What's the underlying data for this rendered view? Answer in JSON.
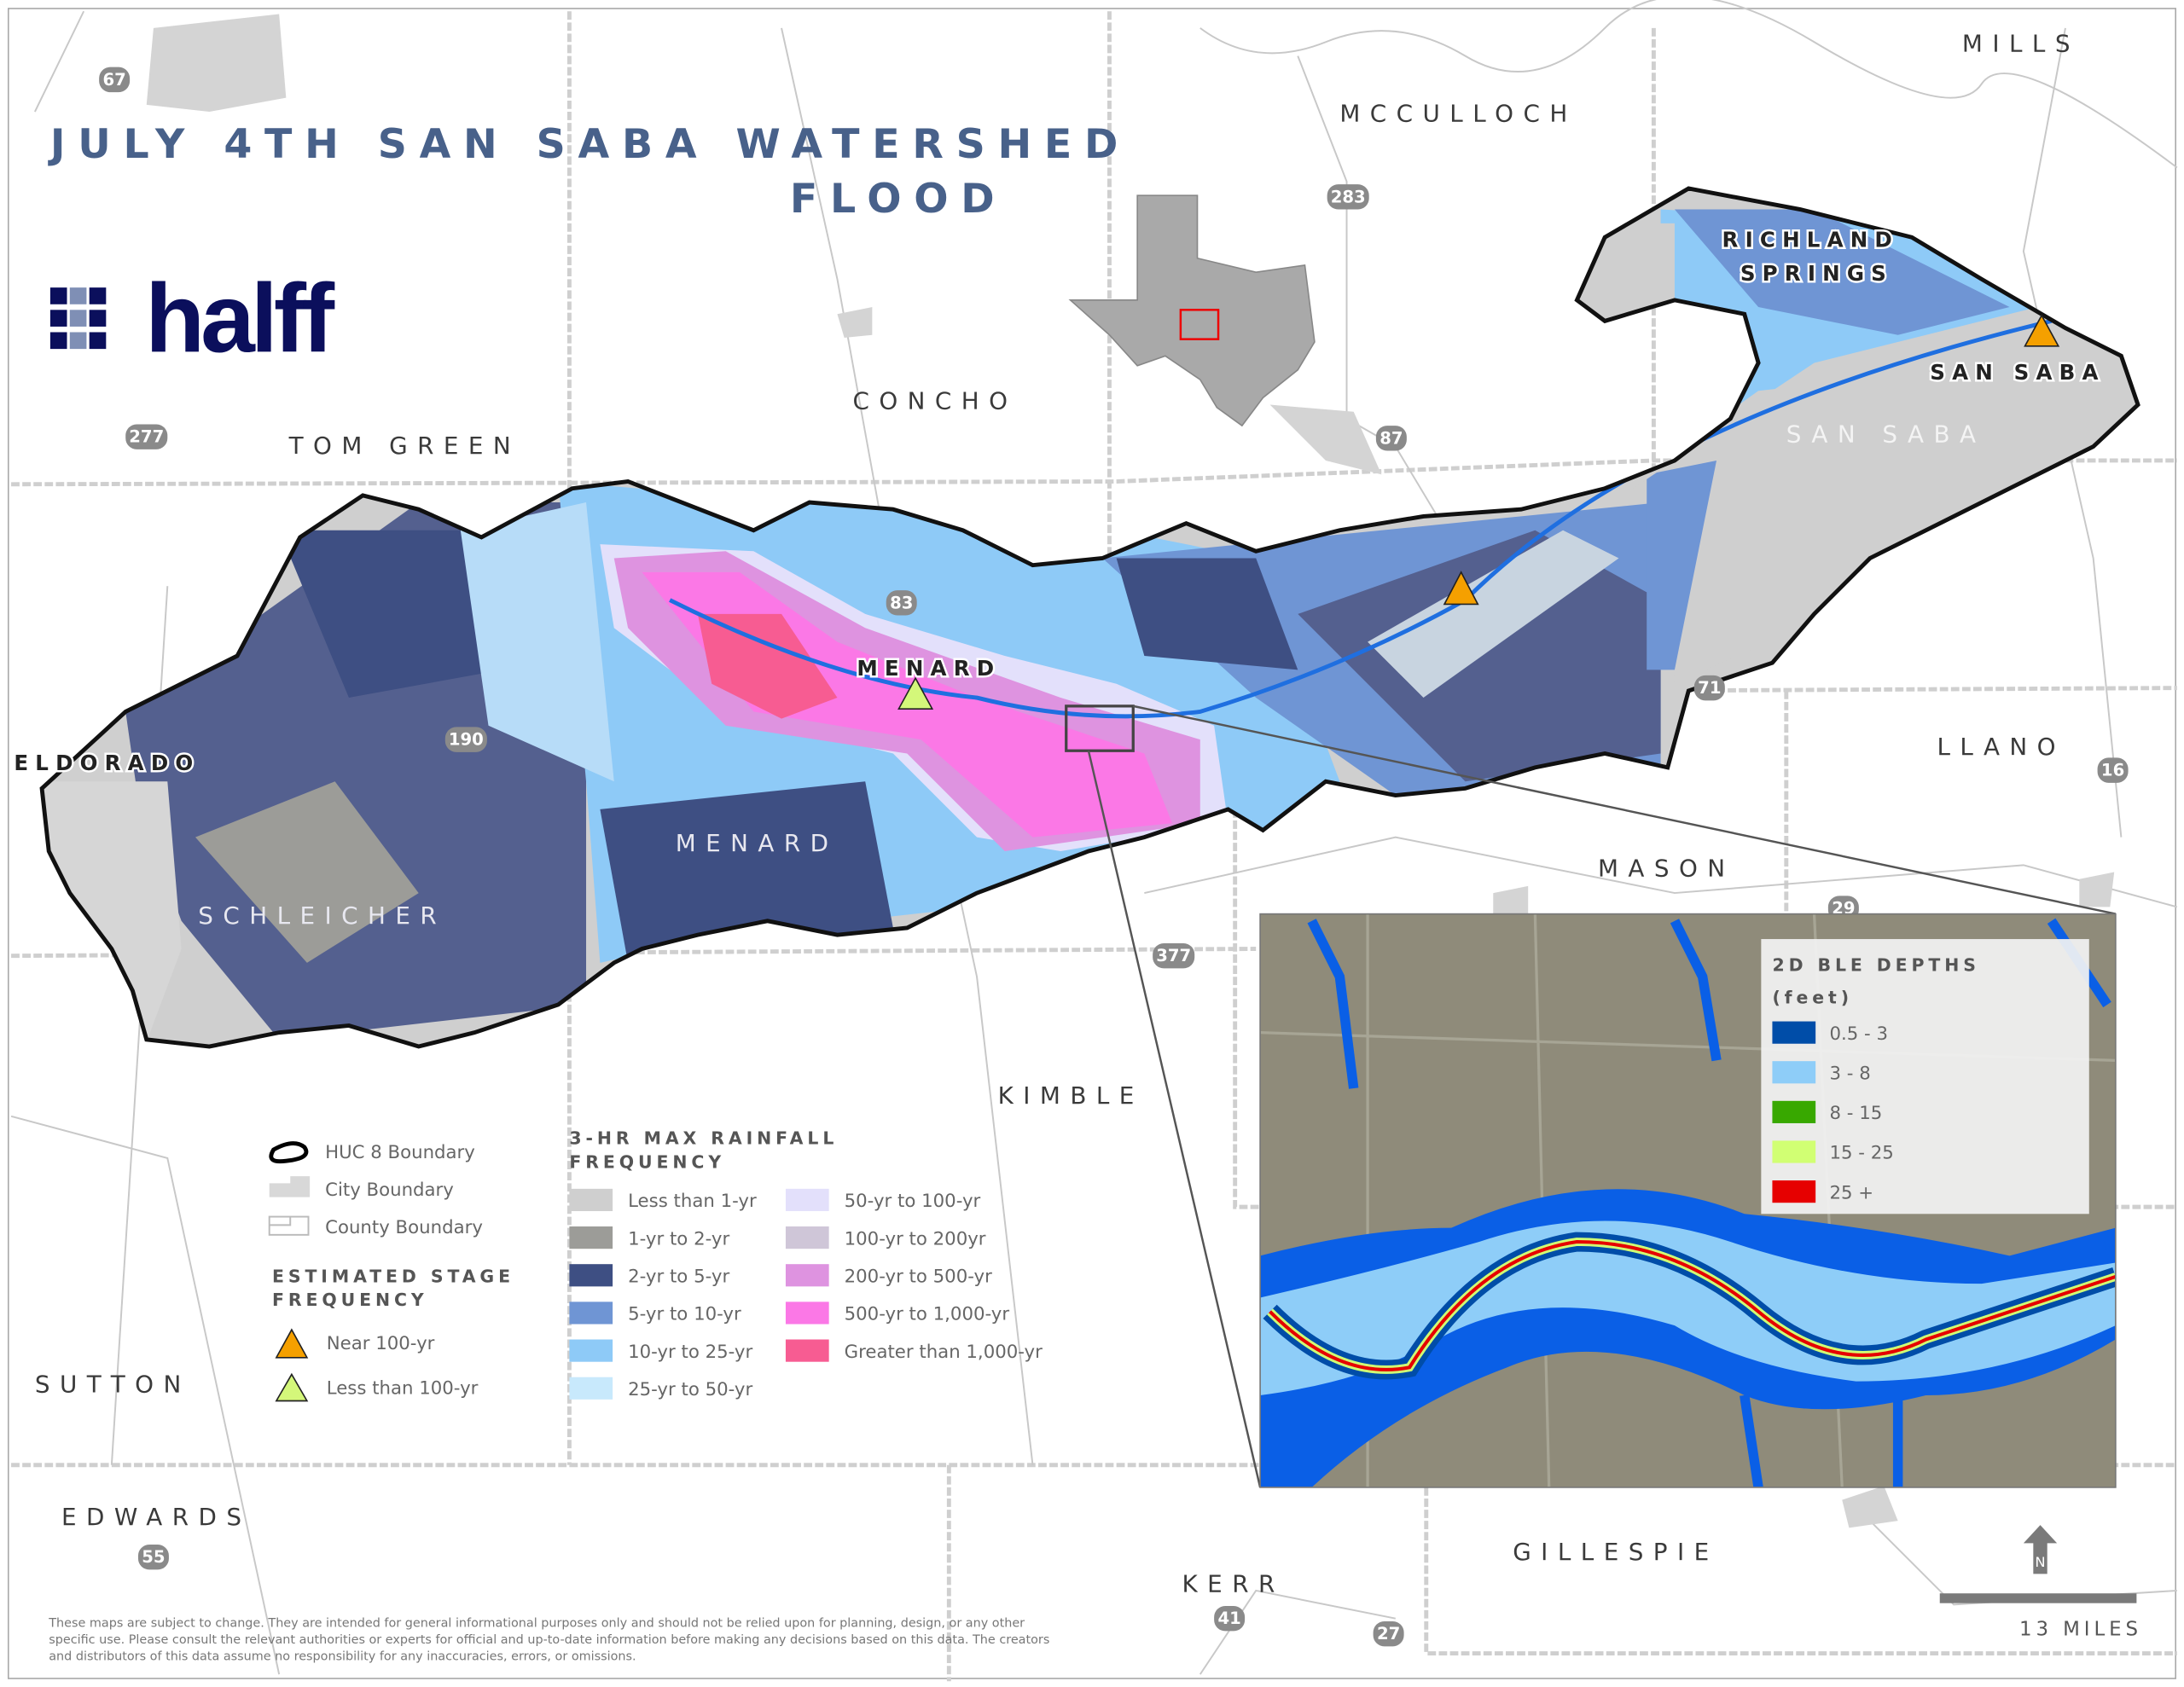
{
  "title": {
    "line1": "JULY 4TH SAN SABA WATERSHED",
    "line2": "FLOOD"
  },
  "logo": {
    "text": "halff",
    "color": "#0b0f5c"
  },
  "counties": {
    "mills": "MILLS",
    "mcculloch": "MCCULLOCH",
    "concho": "CONCHO",
    "tom_green": "TOM GREEN",
    "llano": "LLANO",
    "mason": "MASON",
    "kimble": "KIMBLE",
    "sutton": "SUTTON",
    "edwards": "EDWARDS",
    "kerr": "KERR",
    "gillespie": "GILLESPIE",
    "menard": "MENARD",
    "schleicher": "SCHLEICHER",
    "san_saba": "SAN SABA"
  },
  "cities": {
    "eldorado": "ELDORADO",
    "menard": "MENARD",
    "richland_1": "RICHLAND",
    "richland_2": "SPRINGS",
    "san_saba": "SAN SABA"
  },
  "highways": [
    "67",
    "277",
    "190",
    "83",
    "283",
    "87",
    "71",
    "16",
    "29",
    "377",
    "55",
    "41",
    "27"
  ],
  "legend": {
    "boundaries": [
      {
        "label": "HUC 8 Boundary",
        "icon": "huc8-boundary-icon"
      },
      {
        "label": "City Boundary",
        "icon": "city-boundary-icon"
      },
      {
        "label": "County Boundary",
        "icon": "county-boundary-icon"
      }
    ],
    "stage_title_1": "ESTIMATED STAGE",
    "stage_title_2": "FREQUENCY",
    "stage": [
      {
        "label": "Near 100-yr",
        "color": "#f5a000"
      },
      {
        "label": "Less than 100-yr",
        "color": "#d4f77a"
      }
    ],
    "rain_title_1": "3-HR MAX RAINFALL",
    "rain_title_2": "FREQUENCY",
    "rain": [
      {
        "label": "Less than 1-yr",
        "color": "#cfcfcf"
      },
      {
        "label": "1-yr to 2-yr",
        "color": "#9c9c98"
      },
      {
        "label": "2-yr to 5-yr",
        "color": "#3e4f83"
      },
      {
        "label": "5-yr to 10-yr",
        "color": "#6f95d4"
      },
      {
        "label": "10-yr to 25-yr",
        "color": "#8ecaf7"
      },
      {
        "label": "25-yr to 50-yr",
        "color": "#c8e9fc"
      },
      {
        "label": "50-yr to 100-yr",
        "color": "#e3e0fb"
      },
      {
        "label": "100-yr to 200yr",
        "color": "#cfc6d8"
      },
      {
        "label": "200-yr to 500-yr",
        "color": "#de93e0"
      },
      {
        "label": "500-yr to 1,000-yr",
        "color": "#fb78e6"
      },
      {
        "label": "Greater than 1,000-yr",
        "color": "#f75c92"
      }
    ]
  },
  "inset_legend": {
    "title_1": "2D BLE DEPTHS",
    "title_2": "(feet)",
    "items": [
      {
        "label": "0.5 - 3",
        "color": "#004da8"
      },
      {
        "label": "3 - 8",
        "color": "#8ecdf8"
      },
      {
        "label": "8 - 15",
        "color": "#38a800"
      },
      {
        "label": "15 - 25",
        "color": "#d1ff73"
      },
      {
        "label": "25 +",
        "color": "#e60000"
      }
    ]
  },
  "scale": {
    "label": "13 MILES"
  },
  "north": {
    "label": "N"
  },
  "disclaimer": {
    "line1": "These maps are subject to change. They are intended for general informational purposes only and should not be relied upon for planning, design, or any other",
    "line2": "specific use. Please consult the relevant authorities or experts for official and up-to-date information before making any decisions based on this data. The creators",
    "line3": "and distributors of this data assume no responsibility for any inaccuracies, errors, or omissions."
  }
}
